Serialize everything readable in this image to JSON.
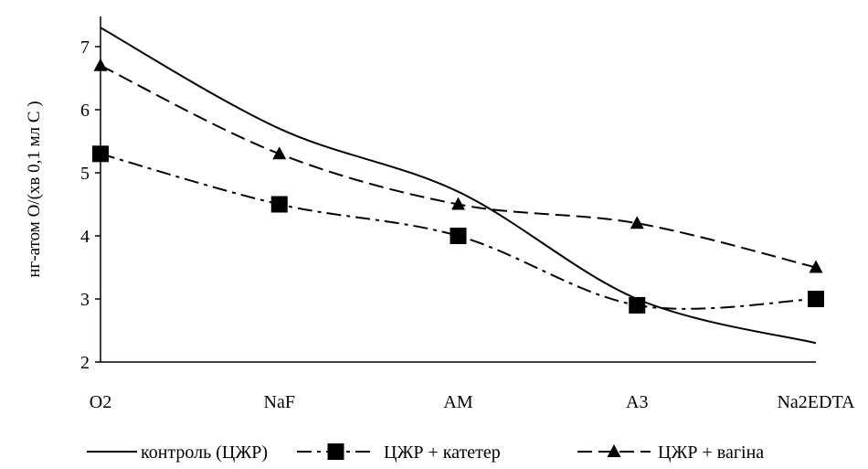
{
  "chart_data": {
    "type": "line",
    "title": "",
    "xlabel": "",
    "ylabel": "нг-атом О/(хв 0,1 мл С )",
    "categories": [
      "O2",
      "NaF",
      "AM",
      "A3",
      "Na2EDTA"
    ],
    "ylim": [
      2,
      7
    ],
    "yticks": [
      "2",
      "3",
      "4",
      "5",
      "6",
      "7"
    ],
    "grid": false,
    "legend_position": "bottom",
    "series": [
      {
        "name": "контроль (ЦЖР)",
        "values": [
          7.3,
          5.7,
          4.7,
          3.0,
          2.3
        ],
        "color": "#000000",
        "dash": "solid",
        "marker": "none"
      },
      {
        "name": "ЦЖР + катетер",
        "values": [
          5.3,
          4.5,
          4.0,
          2.9,
          3.0
        ],
        "color": "#000000",
        "dash": "dashdot",
        "marker": "square"
      },
      {
        "name": "ЦЖР + вагіна",
        "values": [
          6.7,
          5.3,
          4.5,
          4.2,
          3.5
        ],
        "color": "#000000",
        "dash": "dash",
        "marker": "triangle"
      }
    ]
  }
}
